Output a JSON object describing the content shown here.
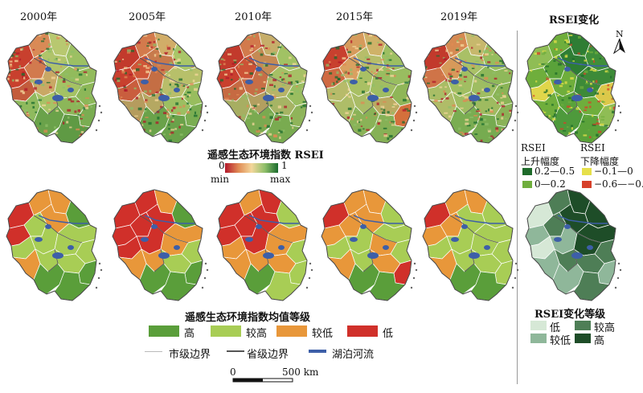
{
  "years": [
    "2000年",
    "2005年",
    "2010年",
    "2015年",
    "2019年"
  ],
  "change_title": "RSEI变化",
  "north": "N",
  "rsei_legend": {
    "title": "遥感生态环境指数 RSEI",
    "v0": "0",
    "v1": "1",
    "min": "min",
    "max": "max",
    "colors": [
      "#b2182b",
      "#f4d79b",
      "#1a6b2e"
    ]
  },
  "change_legend": {
    "rise_title1": "RSEI",
    "rise_title2": "上升幅度",
    "fall_title1": "RSEI",
    "fall_title2": "下降幅度",
    "items": [
      {
        "label": "0.2—0.5",
        "color": "#1e6b2a"
      },
      {
        "label": "0—0.2",
        "color": "#6fae3c"
      },
      {
        "label": "−0.1—0",
        "color": "#e6e04a"
      },
      {
        "label": "−0.6—−0.1",
        "color": "#d7402a"
      }
    ]
  },
  "grade_legend": {
    "title": "遥感生态环境指数均值等级",
    "items": [
      {
        "label": "高",
        "color": "#5a9e3a"
      },
      {
        "label": "较高",
        "color": "#a8cd55"
      },
      {
        "label": "较低",
        "color": "#e8973a"
      },
      {
        "label": "低",
        "color": "#d0302a"
      }
    ]
  },
  "change_grade_legend": {
    "title": "RSEI变化等级",
    "items": [
      {
        "label": "低",
        "color": "#d6e8d6"
      },
      {
        "label": "较高",
        "color": "#4e7e56"
      },
      {
        "label": "较低",
        "color": "#8fb79a"
      },
      {
        "label": "高",
        "color": "#1e4d28"
      }
    ]
  },
  "boundary_legend": {
    "city": "市级边界",
    "province": "省级边界",
    "water": "湖泊河流",
    "city_color": "#bbbbbb",
    "province_color": "#555555",
    "water_color": "#3d5fa8"
  },
  "scale": {
    "zero": "0",
    "dist": "500 km"
  }
}
